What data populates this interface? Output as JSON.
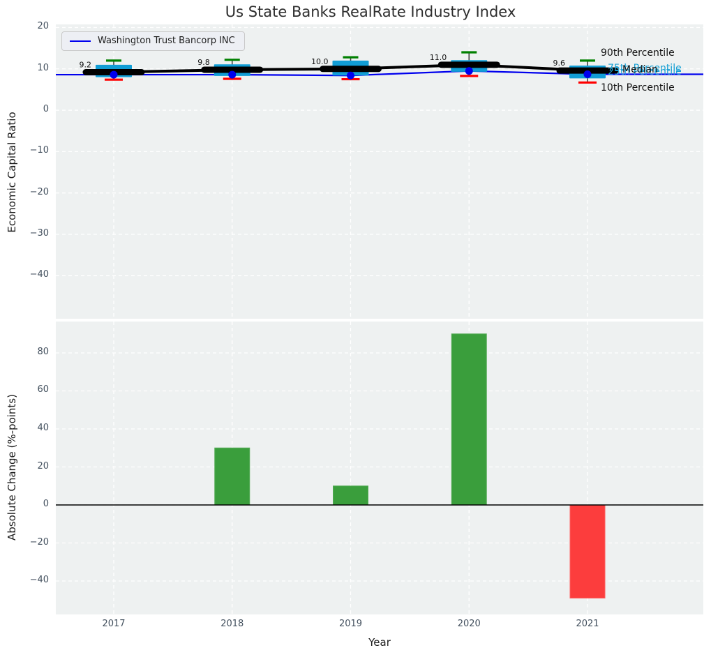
{
  "title": "Us State Banks RealRate Industry Index",
  "colors": {
    "plot_bg": "#eef1f1",
    "grid": "#ffffff",
    "box_fill": "#119dd5",
    "whisker": "#444444",
    "cap_high": "#008000",
    "cap_low": "#ff0000",
    "median": "#000000",
    "company": "#0000ee",
    "bar_positive": "#3a9e3c",
    "bar_positive_edge": "#55ab57",
    "bar_negative": "#fc3d3d",
    "bar_negative_edge": "#fd5f5f",
    "tick": "#43505e",
    "percentile_label_cyan": "#18a0d4",
    "label_dark": "#111111"
  },
  "chart_data": [
    {
      "type": "box",
      "title": "Us State Banks RealRate Industry Index",
      "ylabel": "Economic Capital Ratio",
      "categories": [
        "2017",
        "2018",
        "2019",
        "2020",
        "2021"
      ],
      "ylim": [
        -50.4,
        20.75
      ],
      "yticks": [
        20,
        10,
        0,
        -10,
        -20,
        -30,
        -40
      ],
      "ytick_labels": [
        "20",
        "10",
        "0",
        "−10",
        "−20",
        "−30",
        "−40"
      ],
      "grid": true,
      "legend_position": "upper left",
      "boxes": [
        {
          "year": "2017",
          "whisker_low": 7.4,
          "q1": 8.0,
          "median": 9.2,
          "q3": 11.0,
          "whisker_high": 12.0
        },
        {
          "year": "2018",
          "whisker_low": 7.6,
          "q1": 8.3,
          "median": 9.8,
          "q3": 11.1,
          "whisker_high": 12.2
        },
        {
          "year": "2019",
          "whisker_low": 7.5,
          "q1": 8.4,
          "median": 10.0,
          "q3": 12.0,
          "whisker_high": 12.8
        },
        {
          "year": "2020",
          "whisker_low": 8.3,
          "q1": 9.3,
          "median": 11.0,
          "q3": 12.1,
          "whisker_high": 14.0
        },
        {
          "year": "2021",
          "whisker_low": 6.7,
          "q1": 7.7,
          "median": 9.6,
          "q3": 10.8,
          "whisker_high": 12.0
        }
      ],
      "median_labels": [
        "9.2",
        "9.8",
        "10.0",
        "11.0",
        "9.6"
      ],
      "series": [
        {
          "name": "Washington Trust Bancorp INC",
          "values": [
            8.6,
            8.6,
            8.4,
            9.5,
            8.7
          ]
        }
      ],
      "right_labels": [
        {
          "text": "90th Percentile",
          "color": "#111111",
          "x": 781,
          "y": 33
        },
        {
          "text": "75th Percentile",
          "color": "#18a0d4",
          "x": 791,
          "y": 55
        },
        {
          "text": "25th Percentile",
          "color": "#18a0d4",
          "x": 791,
          "y": 60
        },
        {
          "text": "Median",
          "color": "#111111",
          "x": 812,
          "y": 57
        },
        {
          "text": "10th Percentile",
          "color": "#111111",
          "x": 781,
          "y": 83
        }
      ]
    },
    {
      "type": "bar",
      "xlabel": "Year",
      "ylabel": "Absolute Change (%-points)",
      "categories": [
        "2017",
        "2018",
        "2019",
        "2020",
        "2021"
      ],
      "values": [
        0,
        30,
        10,
        90,
        -49
      ],
      "ylim": [
        -57.6,
        96.5
      ],
      "yticks": [
        80,
        60,
        40,
        20,
        0,
        -20,
        -40
      ],
      "ytick_labels": [
        "80",
        "60",
        "40",
        "20",
        "0",
        "−20",
        "−40"
      ],
      "grid": true
    }
  ]
}
